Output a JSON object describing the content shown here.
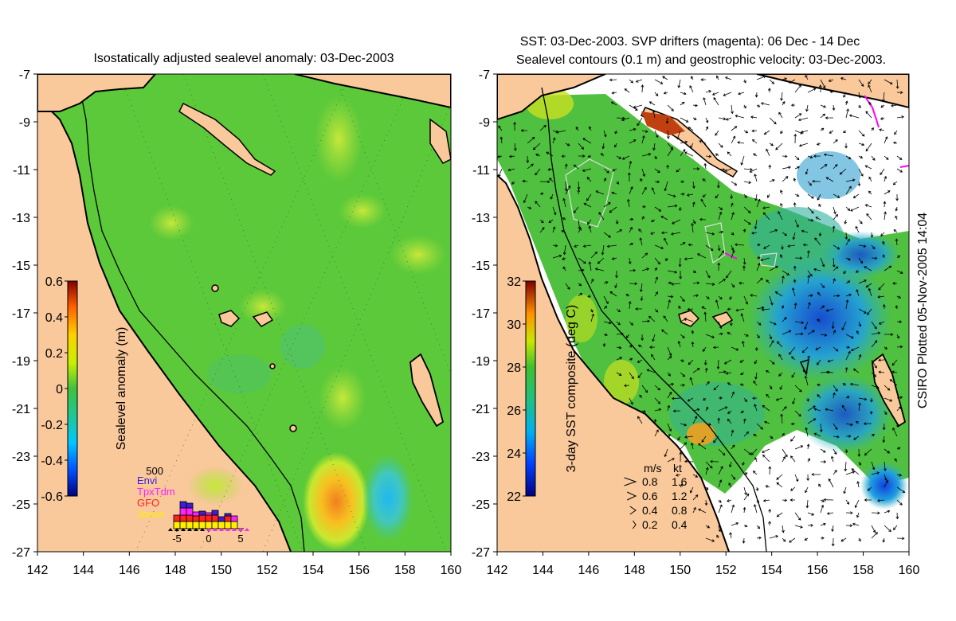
{
  "left_panel": {
    "title": "Isostatically adjusted sealevel anomaly: 03-Dec-2003",
    "colorbar": {
      "label": "Sealevel anomaly (m)",
      "ticks": [
        "0.6",
        "0.4",
        "0.2",
        "0",
        "-0.2",
        "-0.4",
        "-0.6"
      ],
      "range": [
        -0.6,
        0.6
      ]
    },
    "histogram": {
      "ymax_label": "500",
      "legend": [
        {
          "name": "Envi",
          "color": "#3a1fd6"
        },
        {
          "name": "TpxTdm",
          "color": "#ff22ff"
        },
        {
          "name": "GFO",
          "color": "#ff2222"
        },
        {
          "name": "Jason",
          "color": "#ffee00"
        }
      ],
      "xticks": [
        "-5",
        "0",
        "5"
      ],
      "bins": [
        {
          "day": -5,
          "jason": 0.9,
          "gfo": 0.8,
          "tpx": 0,
          "envi": 0
        },
        {
          "day": -4,
          "jason": 0.9,
          "gfo": 0.8,
          "tpx": 0.9,
          "envi": 0.8
        },
        {
          "day": -3,
          "jason": 0.9,
          "gfo": 0.8,
          "tpx": 0.9,
          "envi": 0.6
        },
        {
          "day": -2,
          "jason": 0.9,
          "gfo": 0.7,
          "tpx": 0.5,
          "envi": 0
        },
        {
          "day": -1,
          "jason": 0.9,
          "gfo": 0.8,
          "tpx": 0,
          "envi": 0.5
        },
        {
          "day": 0,
          "jason": 0.9,
          "gfo": 0.8,
          "tpx": 0.3,
          "envi": 0
        },
        {
          "day": 1,
          "jason": 0.9,
          "gfo": 0.8,
          "tpx": 0,
          "envi": 0.6
        },
        {
          "day": 2,
          "jason": 0.9,
          "gfo": 0,
          "tpx": 0,
          "envi": 0.6
        },
        {
          "day": 3,
          "jason": 0.9,
          "gfo": 0.7,
          "tpx": 0,
          "envi": 0.3
        },
        {
          "day": 4,
          "jason": 0.9,
          "gfo": 0,
          "tpx": 0.7,
          "envi": 0
        }
      ]
    }
  },
  "right_panel": {
    "title_line1": "SST: 03-Dec-2003. SVP drifters (magenta): 06 Dec - 14 Dec",
    "title_line2": "Sealevel contours (0.1 m) and geostrophic velocity: 03-Dec-2003.",
    "colorbar": {
      "label": "3-day SST composite (deg C)",
      "ticks": [
        "32",
        "30",
        "28",
        "26",
        "24",
        "22"
      ],
      "range": [
        22,
        32
      ]
    },
    "velocity_legend": {
      "header_ms": "m/s",
      "header_kt": "kt",
      "rows": [
        {
          "ms": "0.8",
          "kt": "1.6"
        },
        {
          "ms": "0.6",
          "kt": "1.2"
        },
        {
          "ms": "0.4",
          "kt": "0.8"
        },
        {
          "ms": "0.2",
          "kt": "0.4"
        }
      ]
    }
  },
  "axes": {
    "lat_ticks": [
      "-7",
      "-9",
      "-11",
      "-13",
      "-15",
      "-17",
      "-19",
      "-21",
      "-23",
      "-25",
      "-27"
    ],
    "lon_ticks": [
      "142",
      "144",
      "146",
      "148",
      "150",
      "152",
      "154",
      "156",
      "158",
      "160"
    ]
  },
  "credit": "CSIRO Plotted 05-Nov-2005 14:04",
  "colors": {
    "land": "#f9c89b",
    "sea_base": "#5cc93a",
    "coast": "#000000",
    "missing": "#ffffff"
  }
}
